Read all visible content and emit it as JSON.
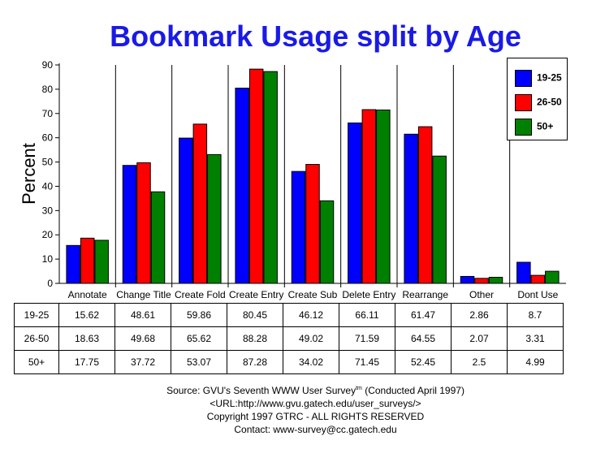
{
  "chart_data": {
    "type": "bar",
    "title": "Bookmark Usage split by Age",
    "ylabel": "Percent",
    "xlabel": "",
    "ylim": [
      0,
      90
    ],
    "yticks": [
      0,
      10,
      20,
      30,
      40,
      50,
      60,
      70,
      80,
      90
    ],
    "grid": false,
    "legend_position": "top-right",
    "categories": [
      "Annotate",
      "Change Title",
      "Create Fold",
      "Create Entry",
      "Create Sub",
      "Delete Entry",
      "Rearrange",
      "Other",
      "Dont Use"
    ],
    "series": [
      {
        "name": "19-25",
        "color": "#0000ff",
        "values": [
          15.62,
          48.61,
          59.86,
          80.45,
          46.12,
          66.11,
          61.47,
          2.86,
          8.7
        ]
      },
      {
        "name": "26-50",
        "color": "#ff0000",
        "values": [
          18.63,
          49.68,
          65.62,
          88.28,
          49.02,
          71.59,
          64.55,
          2.07,
          3.31
        ]
      },
      {
        "name": "50+",
        "color": "#008000",
        "values": [
          17.75,
          37.72,
          53.07,
          87.28,
          34.02,
          71.45,
          52.45,
          2.5,
          4.99
        ]
      }
    ],
    "table": [
      {
        "label": "19-25",
        "cells": [
          "15.62",
          "48.61",
          "59.86",
          "80.45",
          "46.12",
          "66.11",
          "61.47",
          "2.86",
          "8.7"
        ]
      },
      {
        "label": "26-50",
        "cells": [
          "18.63",
          "49.68",
          "65.62",
          "88.28",
          "49.02",
          "71.59",
          "64.55",
          "2.07",
          "3.31"
        ]
      },
      {
        "label": "50+",
        "cells": [
          "17.75",
          "37.72",
          "53.07",
          "87.28",
          "34.02",
          "71.45",
          "52.45",
          "2.5",
          "4.99"
        ]
      }
    ]
  },
  "source": {
    "line1": "Source: GVU's Seventh WWW User Survey",
    "line1_sup": "tm",
    "line1_tail": " (Conducted April 1997)",
    "line2": "<URL:http://www.gvu.gatech.edu/user_surveys/>",
    "line3": "Copyright 1997 GTRC - ALL RIGHTS RESERVED",
    "line4": "Contact: www-survey@cc.gatech.edu"
  }
}
